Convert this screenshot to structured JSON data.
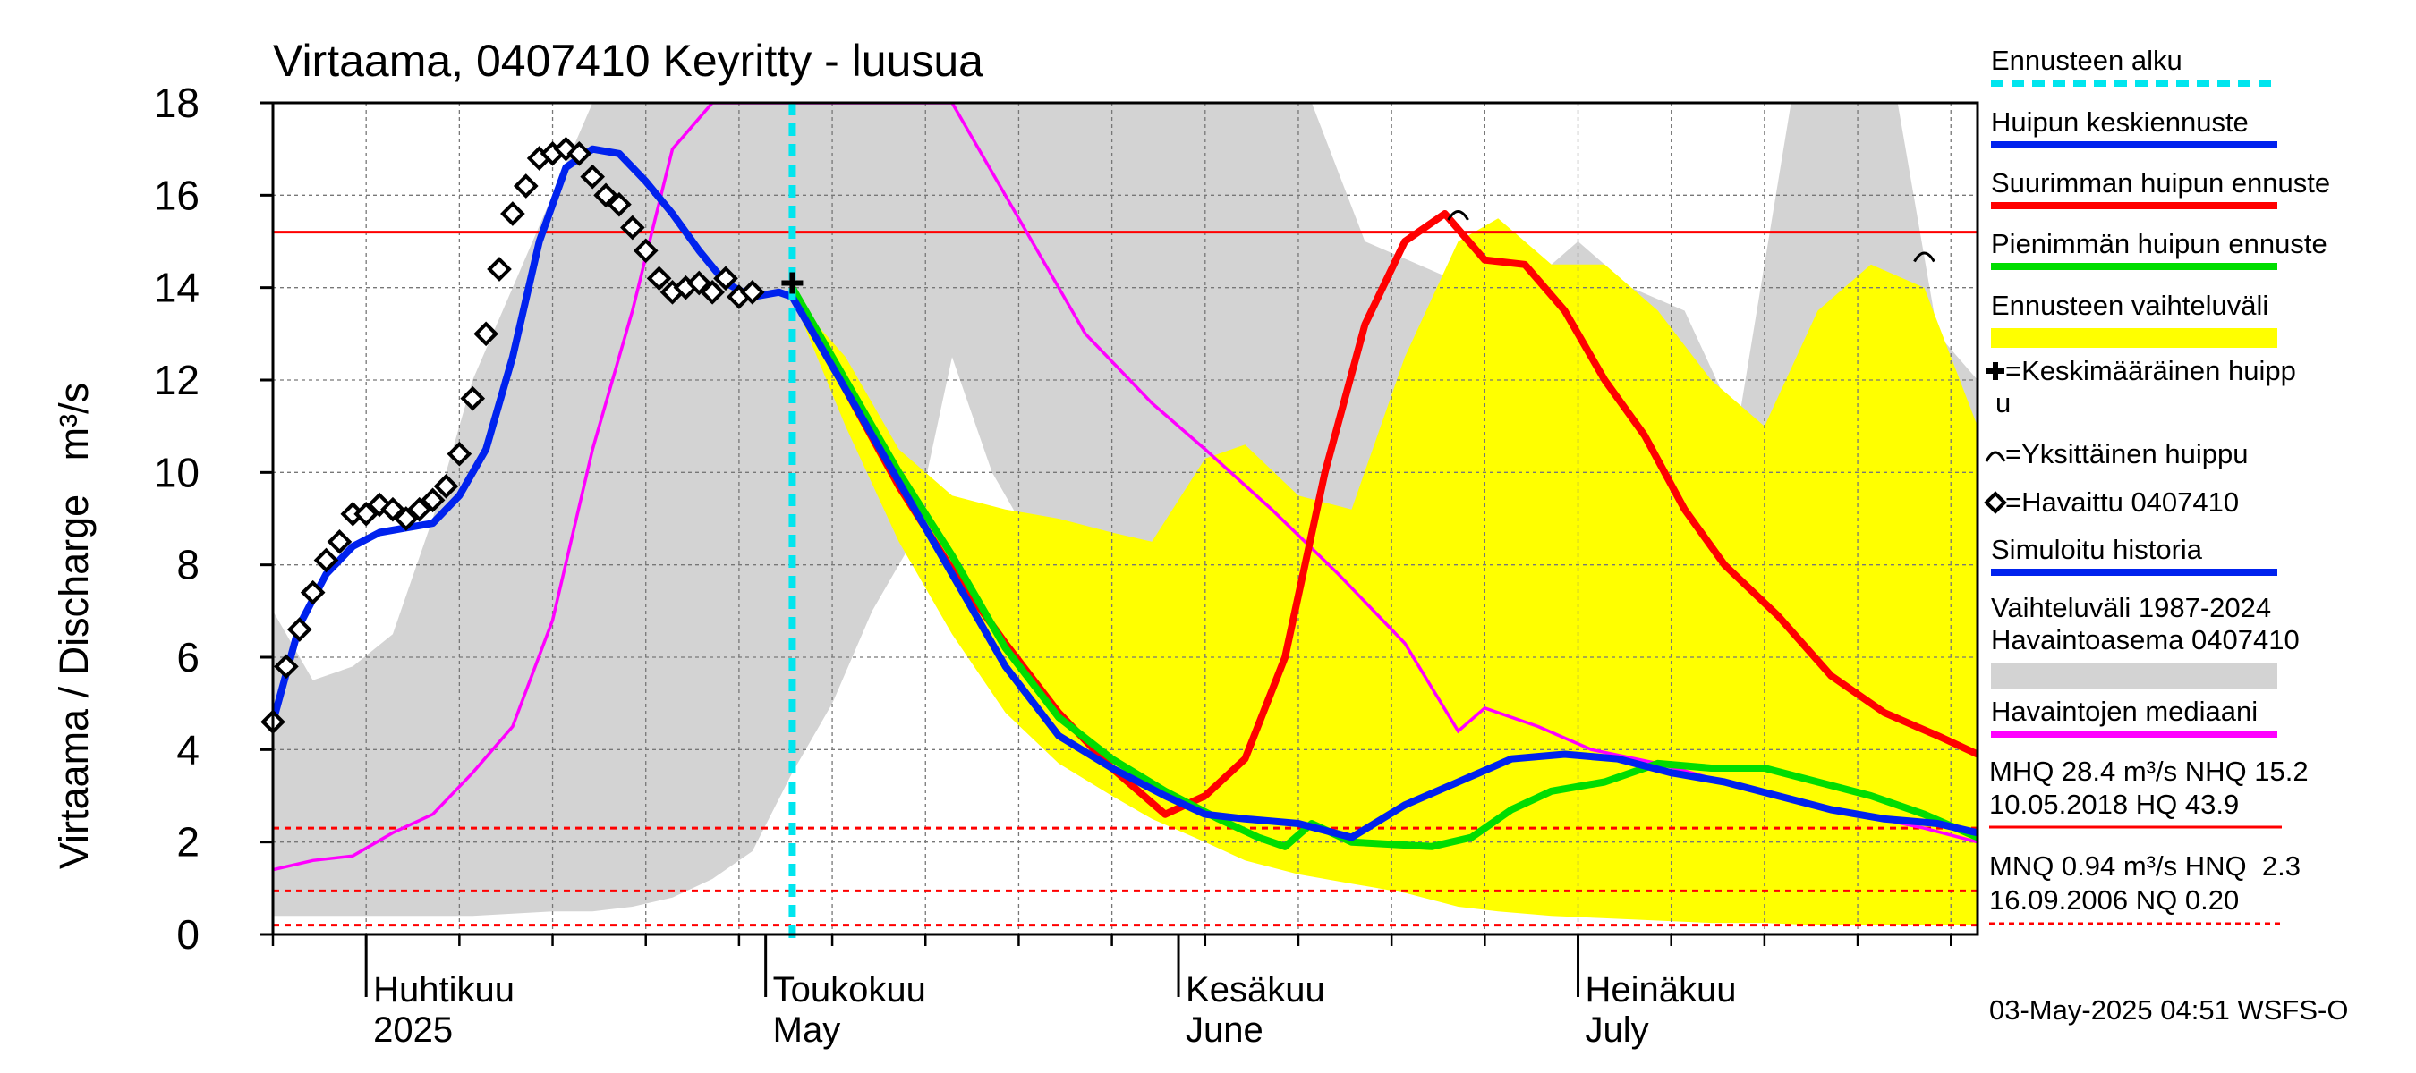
{
  "chart_data": {
    "type": "line",
    "title": "Virtaama, 0407410 Keyritty - luusua",
    "ylabel": "Virtaama / Discharge   m³/s",
    "ylim": [
      0,
      18
    ],
    "yticks": [
      "0",
      "2",
      "4",
      "6",
      "8",
      "10",
      "12",
      "14",
      "16",
      "18"
    ],
    "x_range": [
      "2025-03-25",
      "2025-07-31"
    ],
    "grid": true,
    "legend_position": "right",
    "months": [
      {
        "fi": "Huhtikuu",
        "en": "2025",
        "date": "2025-04-01"
      },
      {
        "fi": "Toukokuu",
        "en": "May",
        "date": "2025-05-01"
      },
      {
        "fi": "Kesäkuu",
        "en": "June",
        "date": "2025-06-01"
      },
      {
        "fi": "Heinäkuu",
        "en": "July",
        "date": "2025-07-01"
      }
    ],
    "forecast_start": "2025-05-03",
    "reference_lines": [
      {
        "name": "NHQ",
        "value": 15.2,
        "style": "solid"
      },
      {
        "name": "HNQ",
        "value": 2.3,
        "style": "dashed"
      },
      {
        "name": "MNQ",
        "value": 0.94,
        "style": "dashed"
      },
      {
        "name": "NQ",
        "value": 0.2,
        "style": "dashed"
      }
    ],
    "series": [
      {
        "name": "Vaihteluväli 1987-2024 Havaintoasema 0407410",
        "type": "band",
        "color": "#d3d3d3",
        "x": [
          "2025-03-25",
          "2025-03-28",
          "2025-03-31",
          "2025-04-03",
          "2025-04-06",
          "2025-04-09",
          "2025-04-12",
          "2025-04-15",
          "2025-04-18",
          "2025-04-21",
          "2025-04-24",
          "2025-04-27",
          "2025-04-30",
          "2025-05-03",
          "2025-05-06",
          "2025-05-09",
          "2025-05-12",
          "2025-05-15",
          "2025-05-18",
          "2025-05-21",
          "2025-05-24",
          "2025-05-27",
          "2025-05-30",
          "2025-06-03",
          "2025-06-07",
          "2025-06-11",
          "2025-06-15",
          "2025-06-19",
          "2025-06-23",
          "2025-06-27",
          "2025-07-01",
          "2025-07-05",
          "2025-07-09",
          "2025-07-13",
          "2025-07-17",
          "2025-07-21",
          "2025-07-25",
          "2025-07-28",
          "2025-07-31"
        ],
        "upper": [
          7.0,
          5.5,
          5.8,
          6.5,
          9.0,
          12.0,
          14.0,
          16.0,
          18.0,
          18.0,
          18.0,
          18.0,
          18.0,
          18.0,
          18.0,
          18.0,
          18.0,
          18.0,
          18.0,
          18.0,
          18.0,
          18.0,
          18.0,
          18.0,
          18.0,
          18.0,
          15.0,
          14.5,
          14.0,
          14.0,
          15.0,
          14.0,
          13.5,
          11.0,
          18.0,
          18.0,
          18.0,
          13.0,
          12.0
        ],
        "lower": [
          0.4,
          0.4,
          0.4,
          0.4,
          0.4,
          0.4,
          0.45,
          0.5,
          0.5,
          0.6,
          0.8,
          1.2,
          1.8,
          3.5,
          5.0,
          7.0,
          8.5,
          12.5,
          10.0,
          8.5,
          7.5,
          6.0,
          4.5,
          3.5,
          2.5,
          2.0,
          1.5,
          1.3,
          1.2,
          1.1,
          1.0,
          0.9,
          0.8,
          0.7,
          0.6,
          0.5,
          0.4,
          0.3,
          0.3
        ]
      },
      {
        "name": "Havaintojen mediaani",
        "type": "line",
        "color": "#ff00ff",
        "x": [
          "2025-03-25",
          "2025-03-28",
          "2025-03-31",
          "2025-04-03",
          "2025-04-06",
          "2025-04-09",
          "2025-04-12",
          "2025-04-15",
          "2025-04-18",
          "2025-04-21",
          "2025-04-24",
          "2025-04-27",
          "2025-04-30",
          "2025-05-15",
          "2025-05-20",
          "2025-05-25",
          "2025-05-30",
          "2025-06-03",
          "2025-06-08",
          "2025-06-13",
          "2025-06-18",
          "2025-06-22",
          "2025-06-24",
          "2025-06-28",
          "2025-07-02",
          "2025-07-07",
          "2025-07-12",
          "2025-07-17",
          "2025-07-22",
          "2025-07-27",
          "2025-07-31"
        ],
        "values": [
          1.4,
          1.6,
          1.7,
          2.2,
          2.6,
          3.5,
          4.5,
          6.8,
          10.5,
          13.5,
          17.0,
          21.0,
          26.0,
          18.0,
          15.5,
          13.0,
          11.5,
          10.5,
          9.2,
          7.8,
          6.3,
          4.4,
          4.9,
          4.5,
          4.0,
          3.7,
          3.3,
          2.9,
          2.6,
          2.3,
          2.0
        ]
      },
      {
        "name": "Ennusteen vaihteluväli",
        "type": "band",
        "color": "#ffff00",
        "x": [
          "2025-05-03",
          "2025-05-07",
          "2025-05-11",
          "2025-05-15",
          "2025-05-19",
          "2025-05-23",
          "2025-05-27",
          "2025-05-30",
          "2025-06-03",
          "2025-06-06",
          "2025-06-10",
          "2025-06-14",
          "2025-06-18",
          "2025-06-22",
          "2025-06-25",
          "2025-06-29",
          "2025-07-03",
          "2025-07-07",
          "2025-07-11",
          "2025-07-15",
          "2025-07-19",
          "2025-07-23",
          "2025-07-27",
          "2025-07-31"
        ],
        "upper": [
          13.8,
          12.5,
          10.5,
          9.5,
          9.2,
          9.0,
          8.7,
          8.5,
          10.3,
          10.6,
          9.5,
          9.2,
          12.5,
          15.0,
          15.5,
          14.5,
          14.5,
          13.5,
          12.0,
          11.0,
          13.5,
          14.5,
          14.0,
          11.0
        ],
        "lower": [
          13.8,
          11.0,
          8.5,
          6.5,
          4.8,
          3.7,
          3.0,
          2.5,
          2.0,
          1.6,
          1.3,
          1.1,
          0.9,
          0.6,
          0.5,
          0.4,
          0.35,
          0.3,
          0.25,
          0.25,
          0.2,
          0.2,
          0.2,
          0.2
        ]
      },
      {
        "name": "Suurimman huipun ennuste",
        "type": "line",
        "color": "#ff0000",
        "x": [
          "2025-05-03",
          "2025-05-07",
          "2025-05-11",
          "2025-05-15",
          "2025-05-19",
          "2025-05-23",
          "2025-05-27",
          "2025-05-31",
          "2025-06-03",
          "2025-06-06",
          "2025-06-09",
          "2025-06-12",
          "2025-06-15",
          "2025-06-18",
          "2025-06-21",
          "2025-06-24",
          "2025-06-27",
          "2025-06-30",
          "2025-07-03",
          "2025-07-06",
          "2025-07-09",
          "2025-07-12",
          "2025-07-16",
          "2025-07-20",
          "2025-07-24",
          "2025-07-28",
          "2025-07-31"
        ],
        "values": [
          14.0,
          11.8,
          9.7,
          7.9,
          6.3,
          4.8,
          3.6,
          2.6,
          3.0,
          3.8,
          6.0,
          10.0,
          13.2,
          15.0,
          15.6,
          14.6,
          14.5,
          13.5,
          12.0,
          10.8,
          9.2,
          8.0,
          6.9,
          5.6,
          4.8,
          4.3,
          3.9
        ]
      },
      {
        "name": "Pienimmän huipun ennuste",
        "type": "line",
        "color": "#00dd00",
        "x": [
          "2025-05-03",
          "2025-05-07",
          "2025-05-11",
          "2025-05-15",
          "2025-05-19",
          "2025-05-23",
          "2025-05-27",
          "2025-05-31",
          "2025-06-04",
          "2025-06-07",
          "2025-06-09",
          "2025-06-11",
          "2025-06-14",
          "2025-06-17",
          "2025-06-20",
          "2025-06-23",
          "2025-06-26",
          "2025-06-29",
          "2025-07-03",
          "2025-07-07",
          "2025-07-11",
          "2025-07-15",
          "2025-07-19",
          "2025-07-23",
          "2025-07-27",
          "2025-07-31"
        ],
        "values": [
          14.0,
          12.0,
          10.0,
          8.2,
          6.2,
          4.7,
          3.8,
          3.1,
          2.5,
          2.1,
          1.9,
          2.4,
          2.0,
          1.95,
          1.9,
          2.1,
          2.7,
          3.1,
          3.3,
          3.7,
          3.6,
          3.6,
          3.3,
          3.0,
          2.6,
          2.1
        ]
      },
      {
        "name": "Huipun keskiennuste",
        "type": "line",
        "color": "#0022ee",
        "x": [
          "2025-03-25",
          "2025-03-27",
          "2025-03-29",
          "2025-03-31",
          "2025-04-02",
          "2025-04-04",
          "2025-04-06",
          "2025-04-08",
          "2025-04-10",
          "2025-04-12",
          "2025-04-14",
          "2025-04-16",
          "2025-04-18",
          "2025-04-20",
          "2025-04-22",
          "2025-04-24",
          "2025-04-26",
          "2025-04-28",
          "2025-04-30",
          "2025-05-02",
          "2025-05-03",
          "2025-05-07",
          "2025-05-11",
          "2025-05-15",
          "2025-05-19",
          "2025-05-23",
          "2025-05-27",
          "2025-05-31",
          "2025-06-03",
          "2025-06-06",
          "2025-06-10",
          "2025-06-14",
          "2025-06-18",
          "2025-06-22",
          "2025-06-26",
          "2025-06-30",
          "2025-07-04",
          "2025-07-08",
          "2025-07-12",
          "2025-07-16",
          "2025-07-20",
          "2025-07-24",
          "2025-07-28",
          "2025-07-31"
        ],
        "values": [
          4.6,
          6.7,
          7.8,
          8.4,
          8.7,
          8.8,
          8.9,
          9.5,
          10.5,
          12.5,
          15.0,
          16.6,
          17.0,
          16.9,
          16.3,
          15.6,
          14.8,
          14.1,
          13.8,
          13.9,
          13.8,
          11.8,
          9.8,
          7.8,
          5.8,
          4.3,
          3.6,
          3.0,
          2.6,
          2.5,
          2.4,
          2.1,
          2.8,
          3.3,
          3.8,
          3.9,
          3.8,
          3.5,
          3.3,
          3.0,
          2.7,
          2.5,
          2.4,
          2.2
        ]
      }
    ],
    "observed": {
      "name": "Havaittu 0407410",
      "x": [
        "2025-03-25",
        "2025-03-26",
        "2025-03-27",
        "2025-03-28",
        "2025-03-29",
        "2025-03-30",
        "2025-03-31",
        "2025-04-01",
        "2025-04-02",
        "2025-04-03",
        "2025-04-04",
        "2025-04-05",
        "2025-04-06",
        "2025-04-07",
        "2025-04-08",
        "2025-04-09",
        "2025-04-10",
        "2025-04-11",
        "2025-04-12",
        "2025-04-13",
        "2025-04-14",
        "2025-04-15",
        "2025-04-16",
        "2025-04-17",
        "2025-04-18",
        "2025-04-19",
        "2025-04-20",
        "2025-04-21",
        "2025-04-22",
        "2025-04-23",
        "2025-04-24",
        "2025-04-25",
        "2025-04-26",
        "2025-04-27",
        "2025-04-28",
        "2025-04-29",
        "2025-04-30"
      ],
      "values": [
        4.6,
        5.8,
        6.6,
        7.4,
        8.1,
        8.5,
        9.1,
        9.1,
        9.3,
        9.2,
        9.0,
        9.2,
        9.4,
        9.7,
        10.4,
        11.6,
        13.0,
        14.4,
        15.6,
        16.2,
        16.8,
        16.9,
        17.0,
        16.9,
        16.4,
        16.0,
        15.8,
        15.3,
        14.8,
        14.2,
        13.9,
        14.0,
        14.1,
        13.9,
        14.2,
        13.8,
        13.9
      ]
    },
    "average_peak": {
      "name": "Keskimääräinen huippu",
      "x": "2025-05-03",
      "value": 14.1
    },
    "single_peaks": [
      {
        "x": "2025-06-22",
        "value": 15.6
      },
      {
        "x": "2025-07-27",
        "value": 14.7
      }
    ]
  },
  "legend": [
    {
      "label": "Ennusteen alku",
      "kind": "dashed",
      "color": "#00e5ee"
    },
    {
      "label": "Huipun keskiennuste",
      "kind": "line",
      "color": "#0022ee"
    },
    {
      "label": "Suurimman huipun ennuste",
      "kind": "line",
      "color": "#ff0000"
    },
    {
      "label": "Pienimmän huipun ennuste",
      "kind": "line",
      "color": "#00dd00"
    },
    {
      "label": "Ennusteen vaihteluväli",
      "kind": "band",
      "color": "#ffff00"
    },
    {
      "label": "=Keskimääräinen huipp",
      "label2": "u",
      "kind": "plus-marker",
      "color": "#000000"
    },
    {
      "label": "=Yksittäinen huippu",
      "kind": "arc-marker",
      "color": "#000000"
    },
    {
      "label": "=Havaittu 0407410",
      "kind": "diamond-marker",
      "color": "#000000"
    },
    {
      "label": "Simuloitu historia",
      "kind": "line",
      "color": "#0022ee"
    },
    {
      "label": "Vaihteluväli 1987-2024",
      "label2": " Havaintoasema 0407410",
      "kind": "band",
      "color": "#d3d3d3"
    },
    {
      "label": "Havaintojen mediaani",
      "kind": "line",
      "color": "#ff00ff"
    }
  ],
  "stats": {
    "line1": "MHQ 28.4 m³/s NHQ 15.2",
    "line2": "10.05.2018 HQ 43.9",
    "line3": "MNQ 0.94 m³/s HNQ  2.3",
    "line4": "16.09.2006 NQ 0.20"
  },
  "footer": "03-May-2025 04:51 WSFS-O"
}
